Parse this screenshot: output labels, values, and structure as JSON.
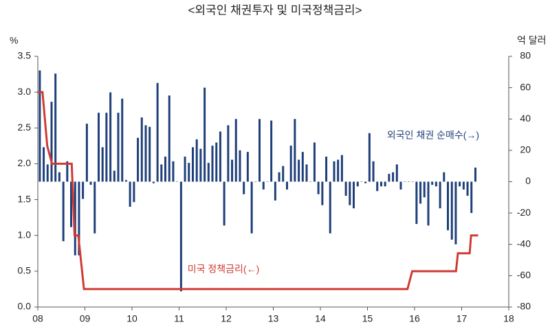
{
  "chart_data": {
    "type": "combo",
    "title": "<외국인 채권투자 및 미국정책금리>",
    "ylabel": "%",
    "y2label": "억 달러",
    "xlim": [
      2008,
      2018
    ],
    "xticks": [
      {
        "value": 2008,
        "label": "08"
      },
      {
        "value": 2009,
        "label": "09"
      },
      {
        "value": 2010,
        "label": "10"
      },
      {
        "value": 2011,
        "label": "11"
      },
      {
        "value": 2012,
        "label": "12"
      },
      {
        "value": 2013,
        "label": "13"
      },
      {
        "value": 2014,
        "label": "14"
      },
      {
        "value": 2015,
        "label": "15"
      },
      {
        "value": 2016,
        "label": "16"
      },
      {
        "value": 2017,
        "label": "17"
      },
      {
        "value": 2018,
        "label": "18"
      }
    ],
    "ylim": [
      0,
      3.5
    ],
    "yticks": [
      {
        "value": 0,
        "label": "0.0"
      },
      0.5,
      {
        "value": 1,
        "label": "1.0"
      },
      1.5,
      {
        "value": 2,
        "label": "2.0"
      },
      2.5,
      {
        "value": 3,
        "label": "3.0"
      },
      3.5
    ],
    "y2lim": [
      -80,
      80
    ],
    "y2ticks": [
      -80,
      -60,
      -40,
      -20,
      0,
      20,
      40,
      60,
      80
    ],
    "grid": false,
    "series": [
      {
        "name": "외국인 채권 순매수(→)",
        "type": "bar",
        "axis": "y2",
        "color": "#1f3f7a",
        "x": [
          2008.042,
          2008.125,
          2008.208,
          2008.292,
          2008.375,
          2008.458,
          2008.542,
          2008.625,
          2008.708,
          2008.792,
          2008.875,
          2008.958,
          2009.042,
          2009.125,
          2009.208,
          2009.292,
          2009.375,
          2009.458,
          2009.542,
          2009.625,
          2009.708,
          2009.792,
          2009.875,
          2009.958,
          2010.042,
          2010.125,
          2010.208,
          2010.292,
          2010.375,
          2010.458,
          2010.542,
          2010.625,
          2010.708,
          2010.792,
          2010.875,
          2010.958,
          2011.042,
          2011.125,
          2011.208,
          2011.292,
          2011.375,
          2011.458,
          2011.542,
          2011.625,
          2011.708,
          2011.792,
          2011.875,
          2011.958,
          2012.042,
          2012.125,
          2012.208,
          2012.292,
          2012.375,
          2012.458,
          2012.542,
          2012.625,
          2012.708,
          2012.792,
          2012.875,
          2012.958,
          2013.042,
          2013.125,
          2013.208,
          2013.292,
          2013.375,
          2013.458,
          2013.542,
          2013.625,
          2013.708,
          2013.792,
          2013.875,
          2013.958,
          2014.042,
          2014.125,
          2014.208,
          2014.292,
          2014.375,
          2014.458,
          2014.542,
          2014.625,
          2014.708,
          2014.792,
          2014.875,
          2014.958,
          2015.042,
          2015.125,
          2015.208,
          2015.292,
          2015.375,
          2015.458,
          2015.542,
          2015.625,
          2015.708,
          2015.792,
          2015.875,
          2015.958,
          2016.042,
          2016.125,
          2016.208,
          2016.292,
          2016.375,
          2016.458,
          2016.542,
          2016.625,
          2016.708,
          2016.792,
          2016.875,
          2016.958,
          2017.042,
          2017.125,
          2017.208,
          2017.292
        ],
        "values": [
          71,
          22,
          11,
          51,
          69,
          6,
          -38,
          13,
          -29,
          -47,
          -47,
          -11,
          37,
          -2,
          -33,
          44,
          22,
          44,
          57,
          7,
          44,
          53,
          1,
          -16,
          -13,
          28,
          41,
          36,
          35,
          -1,
          63,
          11,
          16,
          55,
          13,
          0,
          -70,
          16,
          12,
          22,
          27,
          21,
          60,
          12,
          23,
          25,
          32,
          -28,
          36,
          14,
          40,
          20,
          -8,
          19,
          -33,
          0,
          40,
          -5,
          0,
          39,
          -12,
          6,
          10,
          -5,
          23,
          40,
          14,
          19,
          11,
          0,
          25,
          -8,
          -15,
          16,
          -33,
          13,
          14,
          17,
          -9,
          -15,
          -17,
          -3,
          0,
          -1,
          31,
          13,
          -6,
          -3,
          -3,
          5,
          6,
          11,
          -5,
          0,
          0,
          0,
          -27,
          -14,
          -10,
          -28,
          -2,
          -3,
          -17,
          6,
          -31,
          -37,
          -40,
          -3,
          -5,
          -9,
          -20,
          9
        ]
      },
      {
        "name": "미국 정책금리(←)",
        "type": "line",
        "axis": "y",
        "color": "#d03a32",
        "x": [
          2008.0,
          2008.1,
          2008.2,
          2008.3,
          2008.72,
          2008.78,
          2008.86,
          2008.98,
          2015.85,
          2015.95,
          2016.88,
          2016.92,
          2017.17,
          2017.2,
          2017.35
        ],
        "values": [
          3.0,
          3.0,
          2.25,
          2.0,
          2.0,
          1.0,
          1.0,
          0.25,
          0.25,
          0.5,
          0.5,
          0.75,
          0.75,
          1.0,
          1.0
        ]
      }
    ]
  }
}
